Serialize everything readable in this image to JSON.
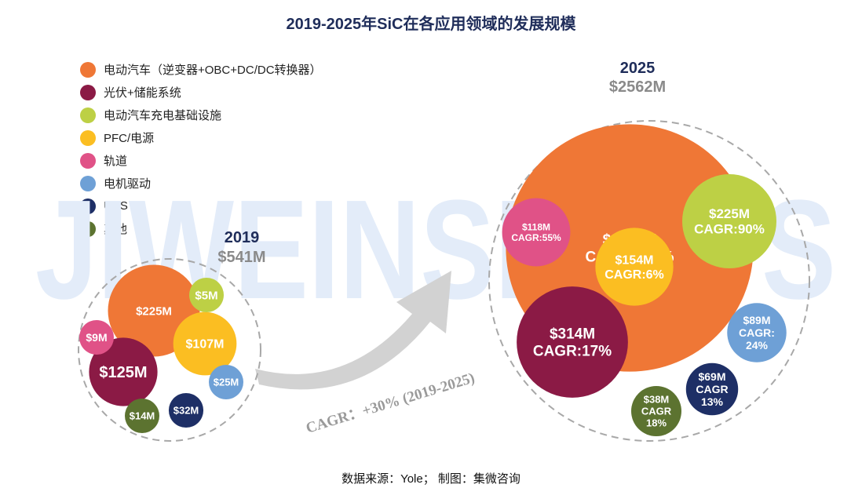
{
  "title": "2019-2025年SiC在各应用领域的发展规模",
  "source": "数据来源：Yole； 制图：集微咨询",
  "watermark": "JIWEINSIGHTS",
  "arrow_label": "CAGR：+30% (2019-2025)",
  "chart_data": [
    {
      "type": "bubble",
      "year_label": "2019",
      "total_label": "$541M",
      "total": 541,
      "unit": "$M",
      "categories": [
        "电动汽车（逆变器+OBC+DC/DC转换器）",
        "光伏+储能系统",
        "电动汽车充电基础设施",
        "PFC/电源",
        "轨道",
        "电机驱动",
        "UPS",
        "其他"
      ],
      "colors": [
        "#ef7736",
        "#8b1a45",
        "#bdd045",
        "#fbbe22",
        "#e05287",
        "#6ea0d6",
        "#1e2f66",
        "#5c7330"
      ],
      "values": [
        225,
        125,
        5,
        107,
        9,
        25,
        32,
        14
      ],
      "labels": [
        [
          "$225M"
        ],
        [
          "$125M"
        ],
        [
          "$5M"
        ],
        [
          "$107M"
        ],
        [
          "$9M"
        ],
        [
          "$25M"
        ],
        [
          "$32M"
        ],
        [
          "$14M"
        ]
      ]
    },
    {
      "type": "bubble",
      "year_label": "2025",
      "total_label": "$2562M",
      "total": 2562,
      "unit": "$M",
      "categories": [
        "电动汽车（逆变器+OBC+DC/DC转换器）",
        "光伏+储能系统",
        "电动汽车充电基础设施",
        "PFC/电源",
        "轨道",
        "电机驱动",
        "UPS",
        "其他"
      ],
      "colors": [
        "#ef7736",
        "#8b1a45",
        "#bdd045",
        "#fbbe22",
        "#e05287",
        "#6ea0d6",
        "#1e2f66",
        "#5c7330"
      ],
      "values": [
        1553,
        314,
        225,
        154,
        118,
        89,
        69,
        38
      ],
      "cagr_percent": [
        38,
        17,
        90,
        6,
        55,
        24,
        13,
        18
      ],
      "labels": [
        [
          "$1553M",
          "CAGR：38%"
        ],
        [
          "$314M",
          "CAGR:17%"
        ],
        [
          "$225M",
          "CAGR:90%"
        ],
        [
          "$154M",
          "CAGR:6%"
        ],
        [
          "$118M",
          "CAGR:55%"
        ],
        [
          "$89M",
          "CAGR:",
          "24%"
        ],
        [
          "$69M",
          "CAGR",
          "13%"
        ],
        [
          "$38M",
          "CAGR",
          "18%"
        ]
      ]
    }
  ]
}
